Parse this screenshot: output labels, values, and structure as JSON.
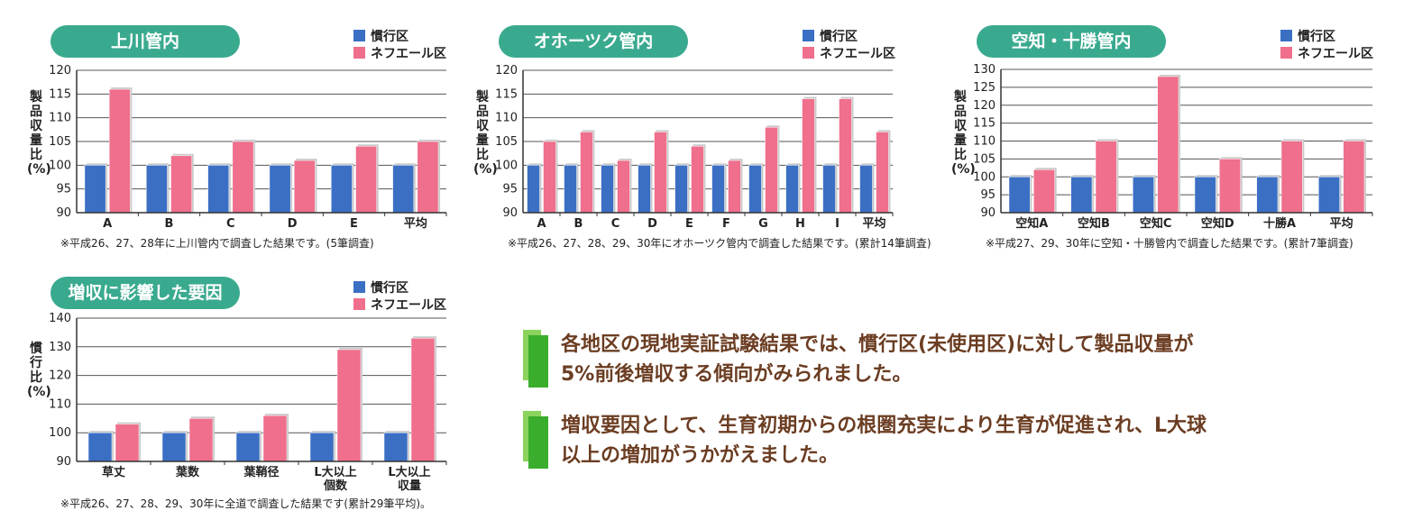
{
  "legend": {
    "conventional": "慣行区",
    "nefuel": "ネフエール区"
  },
  "colors": {
    "conventional": "#3a6fc4",
    "nefuel": "#ef6f8c",
    "title_pill": "#3aaa8f",
    "summary_text": "#6b3d22",
    "summary_mark": "#3aae2c"
  },
  "chart_data": [
    {
      "type": "bar",
      "title": "上川管内",
      "ylabel": "製品収量比(%)",
      "ylim": [
        90,
        120
      ],
      "yticks": [
        "120",
        "115",
        "110",
        "105",
        "100",
        "95",
        "90"
      ],
      "categories": [
        "A",
        "B",
        "C",
        "D",
        "E",
        "平均"
      ],
      "series": [
        {
          "name": "慣行区",
          "values": [
            100,
            100,
            100,
            100,
            100,
            100
          ]
        },
        {
          "name": "ネフエール区",
          "values": [
            116,
            102,
            105,
            101,
            104,
            105
          ]
        }
      ],
      "note": "※平成26、27、28年に上川管内で調査した結果です。(5筆調査)",
      "legend_position": "top-right",
      "grid": true
    },
    {
      "type": "bar",
      "title": "オホーツク管内",
      "ylabel": "製品収量比(%)",
      "ylim": [
        90,
        120
      ],
      "yticks": [
        "120",
        "115",
        "110",
        "105",
        "100",
        "95",
        "90"
      ],
      "categories": [
        "A",
        "B",
        "C",
        "D",
        "E",
        "F",
        "G",
        "H",
        "I",
        "平均"
      ],
      "series": [
        {
          "name": "慣行区",
          "values": [
            100,
            100,
            100,
            100,
            100,
            100,
            100,
            100,
            100,
            100
          ]
        },
        {
          "name": "ネフエール区",
          "values": [
            105,
            107,
            101,
            107,
            104,
            101,
            108,
            114,
            114,
            107
          ]
        }
      ],
      "note": "※平成26、27、28、29、30年にオホーツク管内で調査した結果です。(累計14筆調査)",
      "legend_position": "top-right",
      "grid": true
    },
    {
      "type": "bar",
      "title": "空知・十勝管内",
      "ylabel": "製品収量比(%)",
      "ylim": [
        90,
        130
      ],
      "yticks": [
        "130",
        "125",
        "120",
        "115",
        "110",
        "105",
        "100",
        "95",
        "90"
      ],
      "categories": [
        "空知A",
        "空知B",
        "空知C",
        "空知D",
        "十勝A",
        "平均"
      ],
      "series": [
        {
          "name": "慣行区",
          "values": [
            100,
            100,
            100,
            100,
            100,
            100
          ]
        },
        {
          "name": "ネフエール区",
          "values": [
            102,
            110,
            128,
            105,
            110,
            110
          ]
        }
      ],
      "note": "※平成27、29、30年に空知・十勝管内で調査した結果です。(累計7筆調査)",
      "legend_position": "top-right",
      "grid": true
    },
    {
      "type": "bar",
      "title": "増収に影響した要因",
      "ylabel": "慣行比(%)",
      "ylim": [
        90,
        140
      ],
      "yticks": [
        "140",
        "130",
        "120",
        "110",
        "100",
        "90"
      ],
      "categories": [
        "草丈",
        "葉数",
        "葉鞘径",
        "L大以上\n個数",
        "L大以上\n収量"
      ],
      "series": [
        {
          "name": "慣行区",
          "values": [
            100,
            100,
            100,
            100,
            100
          ]
        },
        {
          "name": "ネフエール区",
          "values": [
            103,
            105,
            106,
            129,
            133
          ]
        }
      ],
      "note": "※平成26、27、28、29、30年に全道で調査した結果です(累計29筆平均)。",
      "legend_position": "top-right",
      "grid": true
    }
  ],
  "summary": [
    {
      "line1": "各地区の現地実証試験結果では、慣行区(未使用区)に対して製品収量が",
      "line2": "5%前後増収する傾向がみられました。"
    },
    {
      "line1": "増収要因として、生育初期からの根圏充実により生育が促進され、L大球",
      "line2": "以上の増加がうかがえました。"
    }
  ]
}
